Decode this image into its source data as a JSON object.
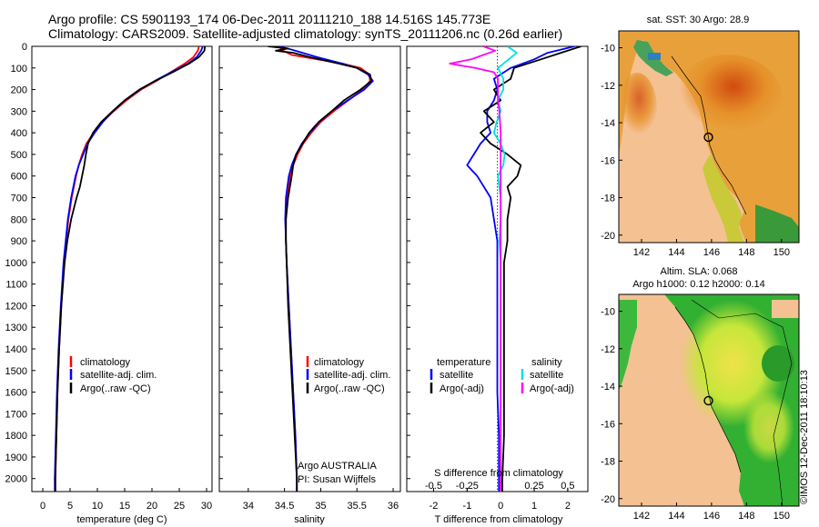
{
  "title_line1": "Argo profile: CS 5901193_174 06-Dec-2011 20111210_188 14.516S 145.773E",
  "title_line2": "Climatology: CARS2009. Satellite-adjusted climatology: synTS_20111206.nc (0.26d earlier)",
  "watermark": "©IMOS 12-Dec-2011 18:10:13",
  "depth_ticks": [
    0,
    100,
    200,
    300,
    400,
    500,
    600,
    700,
    800,
    900,
    1000,
    1100,
    1200,
    1300,
    1400,
    1500,
    1600,
    1700,
    1800,
    1900,
    2000
  ],
  "colors": {
    "climatology": "#ff0000",
    "satellite": "#0000ff",
    "argo": "#000000",
    "sat_sal": "#00e0e0",
    "argo_sal_adj": "#ff00ff"
  },
  "chart_data": [
    {
      "type": "line",
      "xlabel": "temperature (deg C)",
      "x_ticks": [
        0,
        5,
        10,
        15,
        20,
        25,
        30
      ],
      "xlim": [
        -2,
        31
      ],
      "ylim": [
        0,
        2060
      ],
      "legend": [
        "climatology",
        "satellite-adj. clim.",
        "Argo(..raw -QC)"
      ],
      "series": [
        {
          "name": "climatology",
          "color": "#ff0000",
          "depth": [
            0,
            20,
            50,
            80,
            120,
            160,
            200,
            250,
            300,
            350,
            400,
            450,
            500,
            550,
            600,
            700,
            800,
            900,
            1000,
            1200,
            1400,
            1600,
            1800,
            2000,
            2060
          ],
          "values": [
            28.6,
            28.4,
            27.6,
            26.0,
            23.4,
            20.8,
            18.0,
            15.3,
            13.0,
            10.9,
            9.3,
            8.0,
            7.2,
            6.6,
            6.1,
            5.3,
            4.7,
            4.3,
            3.9,
            3.4,
            3.0,
            2.7,
            2.5,
            2.3,
            2.3
          ]
        },
        {
          "name": "satellite-adj. clim.",
          "color": "#0000ff",
          "depth": [
            0,
            20,
            50,
            80,
            120,
            160,
            200,
            250,
            300,
            350,
            400,
            450,
            500,
            550,
            600,
            700,
            800,
            900,
            1000,
            1200,
            1400,
            1600,
            1800,
            2000,
            2060
          ],
          "values": [
            29.3,
            29.0,
            28.2,
            26.6,
            23.5,
            20.5,
            17.8,
            15.0,
            12.8,
            11.0,
            9.5,
            8.2,
            7.4,
            6.6,
            6.0,
            5.2,
            4.6,
            4.2,
            3.8,
            3.3,
            2.9,
            2.6,
            2.4,
            2.2,
            2.2
          ]
        },
        {
          "name": "Argo(..raw -QC)",
          "color": "#000000",
          "depth": [
            0,
            20,
            50,
            80,
            120,
            160,
            200,
            250,
            300,
            350,
            400,
            450,
            500,
            550,
            600,
            650,
            700,
            800,
            900,
            1000,
            1200,
            1400,
            1600,
            1800,
            2000,
            2060
          ],
          "values": [
            29.7,
            29.6,
            28.6,
            26.8,
            23.8,
            20.6,
            17.7,
            15.0,
            12.8,
            10.7,
            9.2,
            8.3,
            7.9,
            7.6,
            7.2,
            6.8,
            6.2,
            5.2,
            4.5,
            4.0,
            3.4,
            3.0,
            2.7,
            2.5,
            2.3,
            2.3
          ]
        }
      ]
    },
    {
      "type": "line",
      "xlabel": "salinity",
      "x_ticks": [
        34,
        34.5,
        35,
        35.5,
        36
      ],
      "xlim": [
        33.6,
        36.1
      ],
      "ylim": [
        0,
        2060
      ],
      "legend": [
        "climatology",
        "satellite-adj. clim.",
        "Argo(..raw -QC)"
      ],
      "annotation": [
        "Argo AUSTRALIA",
        "PI: Susan Wijffels"
      ],
      "series": [
        {
          "name": "climatology",
          "color": "#ff0000",
          "depth": [
            0,
            20,
            40,
            60,
            80,
            100,
            130,
            160,
            200,
            250,
            300,
            350,
            400,
            450,
            500,
            550,
            600,
            700,
            800,
            900,
            1000,
            1200,
            1400,
            1600,
            1800,
            2000,
            2060
          ],
          "values": [
            34.42,
            34.48,
            34.6,
            34.95,
            35.3,
            35.55,
            35.67,
            35.68,
            35.58,
            35.38,
            35.18,
            35.0,
            34.87,
            34.76,
            34.68,
            34.62,
            34.58,
            34.54,
            34.52,
            34.52,
            34.53,
            34.56,
            34.59,
            34.62,
            34.65,
            34.67,
            34.67
          ]
        },
        {
          "name": "satellite-adj. clim.",
          "color": "#0000ff",
          "depth": [
            0,
            15,
            30,
            50,
            80,
            100,
            130,
            160,
            200,
            250,
            300,
            350,
            400,
            450,
            500,
            550,
            600,
            700,
            800,
            900,
            1000,
            1200,
            1400,
            1600,
            1800,
            2000,
            2060
          ],
          "values": [
            34.42,
            34.6,
            34.75,
            34.95,
            35.3,
            35.5,
            35.65,
            35.72,
            35.6,
            35.37,
            35.15,
            34.98,
            34.85,
            34.74,
            34.66,
            34.6,
            34.56,
            34.52,
            34.51,
            34.52,
            34.53,
            34.56,
            34.59,
            34.62,
            34.65,
            34.67,
            34.67
          ]
        },
        {
          "name": "Argo(..raw -QC)",
          "color": "#000000",
          "depth": [
            0,
            10,
            20,
            30,
            50,
            80,
            100,
            130,
            160,
            200,
            250,
            300,
            350,
            400,
            450,
            500,
            550,
            600,
            700,
            800,
            900,
            1000,
            1200,
            1400,
            1600,
            1800,
            2000,
            2060
          ],
          "values": [
            34.27,
            34.55,
            34.38,
            34.62,
            34.85,
            35.25,
            35.5,
            35.68,
            35.7,
            35.55,
            35.32,
            35.15,
            34.97,
            34.84,
            34.75,
            34.66,
            34.62,
            34.6,
            34.55,
            34.52,
            34.52,
            34.53,
            34.55,
            34.58,
            34.61,
            34.64,
            34.67,
            34.67
          ]
        }
      ]
    },
    {
      "type": "line",
      "xlabel": "T difference from climatology",
      "xlabel_top": "S difference from climatology",
      "x_ticks": [
        -2,
        -1,
        0,
        1,
        2
      ],
      "x_ticks_sal": [
        "-0.5",
        "-0.25",
        "0",
        "0.25",
        "0.5"
      ],
      "xlim": [
        -2.8,
        2.6
      ],
      "ylim": [
        0,
        2060
      ],
      "legend_left_title": "temperature",
      "legend_right_title": "salinity",
      "legend_left": [
        "satellite",
        "Argo(-adj)"
      ],
      "legend_right": [
        "satellite",
        "Argo(-adj)"
      ],
      "series": [
        {
          "name": "temperature satellite",
          "color": "#0000ff",
          "depth": [
            0,
            30,
            60,
            100,
            150,
            200,
            250,
            300,
            350,
            400,
            450,
            500,
            550,
            600,
            650,
            700,
            800,
            900,
            1000,
            1200,
            1400,
            1600,
            1800,
            2000,
            2060
          ],
          "values": [
            2.2,
            1.4,
            1.0,
            0.3,
            -0.2,
            -0.1,
            -0.2,
            -0.4,
            -0.4,
            -0.3,
            -0.6,
            -0.8,
            -1.0,
            -0.7,
            -0.5,
            -0.3,
            -0.2,
            -0.1,
            -0.1,
            -0.1,
            -0.1,
            -0.1,
            -0.05,
            -0.05,
            -0.05
          ]
        },
        {
          "name": "temperature Argo(-adj)",
          "color": "#000000",
          "depth": [
            0,
            30,
            60,
            100,
            150,
            200,
            250,
            300,
            350,
            400,
            450,
            500,
            550,
            600,
            650,
            700,
            800,
            900,
            1000,
            1200,
            1400,
            1600,
            1800,
            2000,
            2060
          ],
          "values": [
            2.4,
            1.8,
            1.2,
            0.4,
            0.3,
            -0.2,
            0.0,
            -0.5,
            -0.2,
            -0.6,
            -0.3,
            0.2,
            0.6,
            0.5,
            0.2,
            0.3,
            0.2,
            0.2,
            0.1,
            0.1,
            0.1,
            0.1,
            0.1,
            0.05,
            0.05
          ]
        },
        {
          "name": "salinity satellite",
          "color": "#00e0e0",
          "depth": [
            0,
            30,
            60,
            100,
            150,
            200,
            250,
            300,
            350,
            400,
            450,
            500,
            550,
            600,
            700,
            800,
            900,
            1000,
            1200,
            1400,
            1600,
            1800,
            2000,
            2060
          ],
          "values": [
            0.05,
            0.12,
            0.06,
            -0.02,
            0.02,
            0.02,
            -0.02,
            0.0,
            -0.03,
            -0.05,
            0.0,
            0.03,
            0.02,
            -0.02,
            0.0,
            0.0,
            -0.01,
            0.0,
            0.0,
            0.0,
            0.0,
            0.0,
            0.0,
            0.0
          ]
        },
        {
          "name": "salinity Argo(-adj)",
          "color": "#ff00ff",
          "depth": [
            0,
            20,
            40,
            60,
            80,
            100,
            120,
            150,
            200,
            250,
            300,
            400,
            500,
            600,
            800,
            1000,
            1200,
            1400,
            1600,
            1800,
            2000,
            2060
          ],
          "values": [
            -0.13,
            -0.04,
            -0.13,
            -0.22,
            -0.38,
            -0.19,
            -0.05,
            -0.02,
            -0.02,
            -0.02,
            -0.01,
            0.0,
            0.0,
            0.0,
            0.0,
            0.0,
            0.0,
            0.0,
            0.0,
            0.0,
            0.0,
            0.0
          ]
        }
      ]
    }
  ],
  "maps": [
    {
      "title_lines": [
        "sat. SST: 30 Argo: 28.9"
      ],
      "x_ticks": [
        "142",
        "144",
        "146",
        "148",
        "150"
      ],
      "y_ticks": [
        "-10",
        "-12",
        "-14",
        "-16",
        "-18",
        "-20"
      ]
    },
    {
      "title_lines": [
        "Altim. SLA: 0.068",
        "Argo h1000: 0.12 h2000: 0.14"
      ],
      "x_ticks": [
        "142",
        "144",
        "146",
        "148",
        "150"
      ],
      "y_ticks": [
        "-10",
        "-12",
        "-14",
        "-16",
        "-18",
        "-20"
      ]
    }
  ]
}
